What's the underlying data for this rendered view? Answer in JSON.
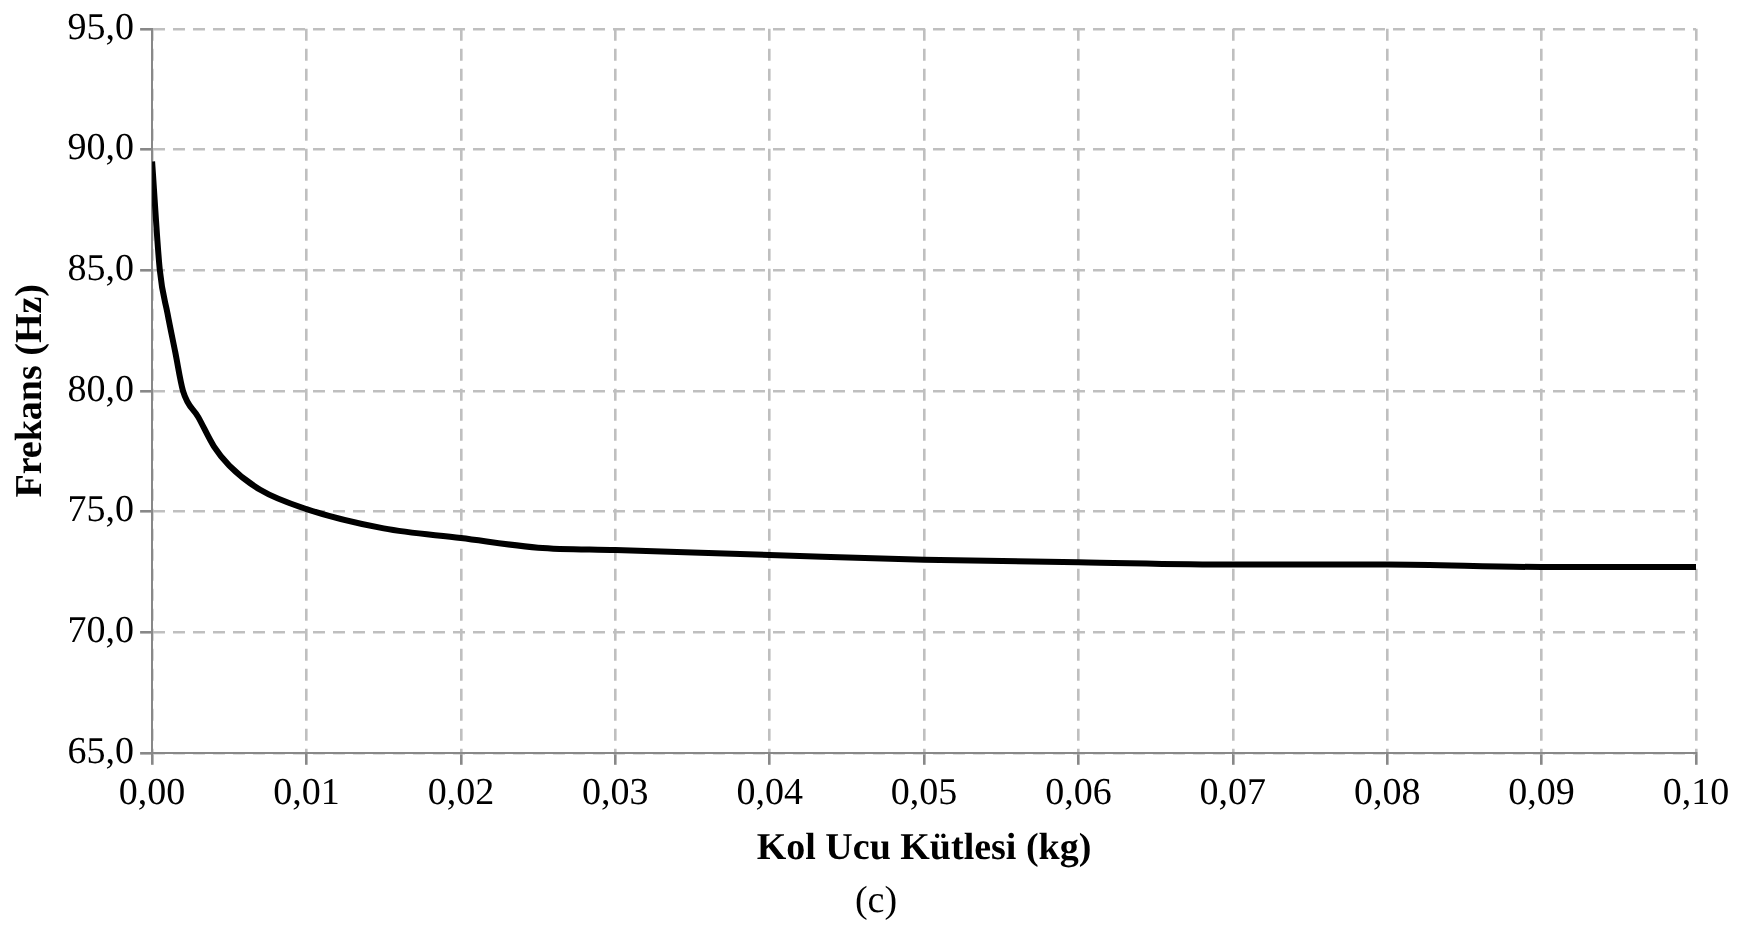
{
  "chart_data": {
    "type": "line",
    "xlabel": "Kol Ucu Kütlesi (kg)",
    "ylabel": "Frekans (Hz)",
    "annotations": [
      "(c)"
    ],
    "series": [
      {
        "color": "#000000",
        "x": [
          0,
          0.0005,
          0.001,
          0.0015,
          0.002,
          0.003,
          0.004,
          0.005,
          0.007,
          0.01,
          0.015,
          0.02,
          0.025,
          0.03,
          0.04,
          0.05,
          0.06,
          0.07,
          0.08,
          0.09,
          0.1
        ],
        "values": [
          89.5,
          85.0,
          83.2,
          81.6,
          80.0,
          78.9,
          77.7,
          76.9,
          75.9,
          75.1,
          74.3,
          73.9,
          73.5,
          73.4,
          73.2,
          73.0,
          72.9,
          72.8,
          72.8,
          72.7,
          72.7
        ]
      }
    ],
    "xlim": [
      0,
      0.1
    ],
    "ylim": [
      65,
      95
    ],
    "xticks": [
      {
        "value": 0,
        "label": "0,00"
      },
      {
        "value": 0.01,
        "label": "0,01"
      },
      {
        "value": 0.02,
        "label": "0,02"
      },
      {
        "value": 0.03,
        "label": "0,03"
      },
      {
        "value": 0.04,
        "label": "0,04"
      },
      {
        "value": 0.05,
        "label": "0,05"
      },
      {
        "value": 0.06,
        "label": "0,06"
      },
      {
        "value": 0.07,
        "label": "0,07"
      },
      {
        "value": 0.08,
        "label": "0,08"
      },
      {
        "value": 0.09,
        "label": "0,09"
      },
      {
        "value": 0.1,
        "label": "0,10"
      }
    ],
    "yticks": [
      {
        "value": 65,
        "label": "65,0"
      },
      {
        "value": 70,
        "label": "70,0"
      },
      {
        "value": 75,
        "label": "75,0"
      },
      {
        "value": 80,
        "label": "80,0"
      },
      {
        "value": 85,
        "label": "85,0"
      },
      {
        "value": 90,
        "label": "90,0"
      },
      {
        "value": 95,
        "label": "95,0"
      }
    ],
    "grid": true,
    "legend": false,
    "marker": "none",
    "line_style": "solid"
  }
}
